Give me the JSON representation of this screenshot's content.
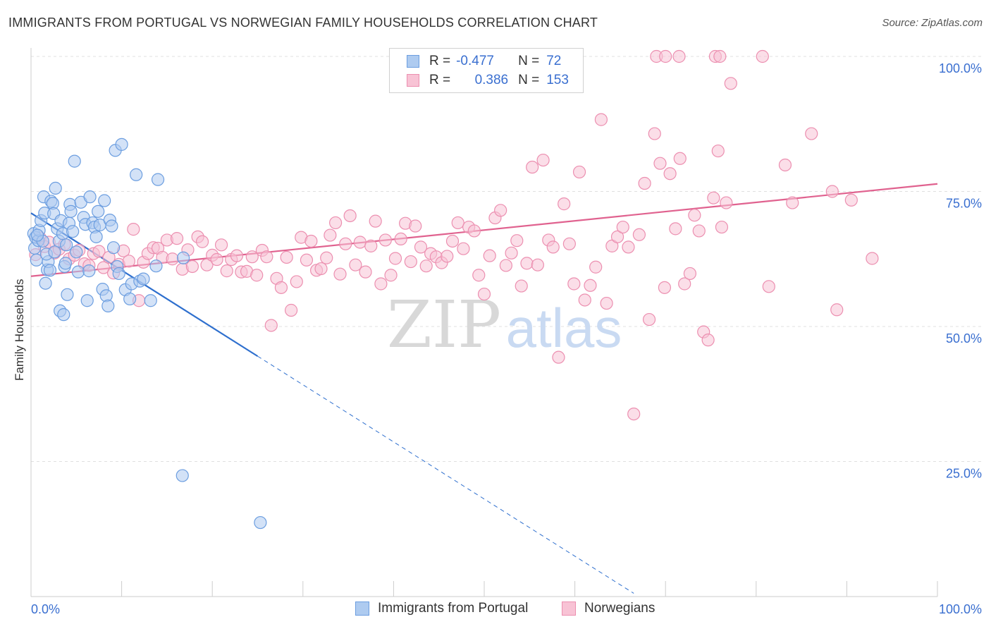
{
  "title": "IMMIGRANTS FROM PORTUGAL VS NORWEGIAN FAMILY HOUSEHOLDS CORRELATION CHART",
  "source": "Source: ZipAtlas.com",
  "watermark": {
    "zip": "ZIP",
    "atlas": "atlas"
  },
  "legend": {
    "row1": {
      "r_label": "R =",
      "r_value": "-0.477",
      "n_label": "N =",
      "n_value": "72"
    },
    "row2": {
      "r_label": "R =",
      "r_value": "0.386",
      "n_label": "N =",
      "n_value": "153"
    }
  },
  "bottom_legend": {
    "series1": "Immigrants from Portugal",
    "series2": "Norwegians"
  },
  "colors": {
    "blue_fill": "#aecbf0",
    "blue_stroke": "#6c9ee0",
    "blue_line": "#2e6fce",
    "pink_fill": "#f8c3d5",
    "pink_stroke": "#ec8fb0",
    "pink_line": "#e0628f",
    "axis_text": "#3a6fd0"
  },
  "chart_data": {
    "type": "scatter",
    "ylabel": "Family Households",
    "xlim": [
      0,
      100
    ],
    "ylim": [
      0,
      100
    ],
    "x_tick_labels": {
      "left": "0.0%",
      "right": "100.0%"
    },
    "y_tick_labels": [
      {
        "v": 100,
        "label": "100.0%"
      },
      {
        "v": 75,
        "label": "75.0%"
      },
      {
        "v": 50,
        "label": "50.0%"
      },
      {
        "v": 25,
        "label": "25.0%"
      }
    ],
    "grid": true,
    "series": [
      {
        "name": "Immigrants from Portugal",
        "r": -0.477,
        "n": 72,
        "trend": {
          "x": [
            0,
            25
          ],
          "y": [
            71,
            44.5
          ],
          "dash_to": [
            66.5,
            0.6
          ]
        },
        "points": [
          [
            0.3,
            67.2
          ],
          [
            0.4,
            64.5
          ],
          [
            0.5,
            66.5
          ],
          [
            0.6,
            62.3
          ],
          [
            0.8,
            65.9
          ],
          [
            0.9,
            67.8
          ],
          [
            1.1,
            69.6
          ],
          [
            1.3,
            65.8
          ],
          [
            1.4,
            74
          ],
          [
            1.5,
            71
          ],
          [
            1.6,
            58
          ],
          [
            1.8,
            60.5
          ],
          [
            1.9,
            62
          ],
          [
            2.1,
            60.4
          ],
          [
            2.2,
            73.2
          ],
          [
            2.4,
            72.8
          ],
          [
            2.5,
            70.9
          ],
          [
            2.7,
            75.6
          ],
          [
            2.9,
            68.1
          ],
          [
            3.1,
            65.8
          ],
          [
            3.2,
            52.9
          ],
          [
            3.3,
            69.6
          ],
          [
            3.5,
            67.2
          ],
          [
            3.6,
            52.2
          ],
          [
            3.7,
            61.1
          ],
          [
            3.9,
            65.1
          ],
          [
            4,
            55.9
          ],
          [
            4.2,
            69.1
          ],
          [
            4.3,
            72.6
          ],
          [
            4.4,
            71.3
          ],
          [
            4.6,
            67.6
          ],
          [
            4.8,
            80.6
          ],
          [
            5,
            63.8
          ],
          [
            5.2,
            60.1
          ],
          [
            5.5,
            73
          ],
          [
            5.8,
            70.2
          ],
          [
            6,
            68.9
          ],
          [
            6.2,
            54.8
          ],
          [
            6.4,
            60.3
          ],
          [
            6.5,
            74
          ],
          [
            6.8,
            69.2
          ],
          [
            7,
            68.4
          ],
          [
            7.2,
            66.6
          ],
          [
            7.4,
            71.3
          ],
          [
            7.6,
            68.8
          ],
          [
            7.9,
            56.9
          ],
          [
            8.1,
            73.3
          ],
          [
            8.3,
            55.7
          ],
          [
            8.5,
            53.8
          ],
          [
            8.7,
            69.7
          ],
          [
            8.9,
            68.6
          ],
          [
            9.1,
            64.6
          ],
          [
            9.3,
            82.6
          ],
          [
            9.5,
            61.1
          ],
          [
            9.7,
            59.8
          ],
          [
            10,
            83.7
          ],
          [
            10.4,
            56.8
          ],
          [
            10.9,
            55.1
          ],
          [
            11.1,
            57.9
          ],
          [
            11.6,
            78.1
          ],
          [
            12,
            58.4
          ],
          [
            12.4,
            58.8
          ],
          [
            13.2,
            54.8
          ],
          [
            13.8,
            61.2
          ],
          [
            14,
            77.2
          ],
          [
            16.7,
            22.4
          ],
          [
            16.8,
            62.7
          ],
          [
            25.3,
            13.7
          ],
          [
            0.7,
            66.9
          ],
          [
            1.7,
            63.4
          ],
          [
            2.6,
            63.8
          ],
          [
            3.8,
            61.7
          ]
        ]
      },
      {
        "name": "Norwegians",
        "r": 0.386,
        "n": 153,
        "trend": {
          "x": [
            0,
            100
          ],
          "y": [
            59.3,
            76.4
          ]
        },
        "points": [
          [
            0.5,
            63.3
          ],
          [
            1,
            66.4
          ],
          [
            1.5,
            64.8
          ],
          [
            2,
            65.6
          ],
          [
            2.6,
            63.6
          ],
          [
            3.1,
            64.3
          ],
          [
            3.7,
            65.2
          ],
          [
            4.2,
            62.5
          ],
          [
            4.8,
            63.2
          ],
          [
            5.3,
            64.1
          ],
          [
            5.9,
            61.6
          ],
          [
            6.4,
            61.3
          ],
          [
            6.9,
            63.5
          ],
          [
            7.5,
            63.9
          ],
          [
            8,
            60.9
          ],
          [
            8.6,
            62.8
          ],
          [
            9.1,
            59.9
          ],
          [
            9.7,
            61.5
          ],
          [
            10.2,
            64
          ],
          [
            10.8,
            62.1
          ],
          [
            11.3,
            68
          ],
          [
            11.9,
            54.8
          ],
          [
            12.4,
            61.9
          ],
          [
            12.9,
            63.5
          ],
          [
            13.5,
            64.6
          ],
          [
            14,
            64.5
          ],
          [
            14.5,
            62.8
          ],
          [
            15,
            66
          ],
          [
            15.6,
            62.5
          ],
          [
            16.1,
            66.3
          ],
          [
            16.7,
            60.6
          ],
          [
            17.3,
            64.2
          ],
          [
            17.8,
            61.1
          ],
          [
            18.4,
            66.6
          ],
          [
            18.9,
            65.7
          ],
          [
            19.4,
            61.4
          ],
          [
            20,
            63.2
          ],
          [
            20.5,
            62.4
          ],
          [
            21,
            65.1
          ],
          [
            21.6,
            60.3
          ],
          [
            22.1,
            62.4
          ],
          [
            22.7,
            63.1
          ],
          [
            23.2,
            60.1
          ],
          [
            23.8,
            60.2
          ],
          [
            24.4,
            62.9
          ],
          [
            24.9,
            59.5
          ],
          [
            25.5,
            64.1
          ],
          [
            26,
            62.9
          ],
          [
            26.5,
            50.2
          ],
          [
            27.1,
            58.9
          ],
          [
            27.6,
            57.2
          ],
          [
            28.2,
            62.8
          ],
          [
            28.7,
            53
          ],
          [
            29.3,
            58.3
          ],
          [
            29.8,
            66.5
          ],
          [
            30.4,
            62.3
          ],
          [
            30.9,
            65.8
          ],
          [
            31.5,
            60.4
          ],
          [
            32,
            60.7
          ],
          [
            32.6,
            62.7
          ],
          [
            33,
            66.9
          ],
          [
            33.6,
            69.2
          ],
          [
            34.1,
            59.7
          ],
          [
            34.7,
            65.3
          ],
          [
            35.2,
            70.5
          ],
          [
            35.8,
            61.4
          ],
          [
            36.3,
            65.6
          ],
          [
            36.9,
            60.1
          ],
          [
            37.5,
            64.9
          ],
          [
            38,
            69.5
          ],
          [
            38.6,
            57.9
          ],
          [
            39.1,
            66
          ],
          [
            39.7,
            59.5
          ],
          [
            40.2,
            62.6
          ],
          [
            40.8,
            66.2
          ],
          [
            41.3,
            69.1
          ],
          [
            41.9,
            62
          ],
          [
            42.4,
            68.6
          ],
          [
            43,
            64.7
          ],
          [
            43.6,
            61.2
          ],
          [
            44.1,
            63.5
          ],
          [
            44.7,
            62.9
          ],
          [
            45.3,
            61.8
          ],
          [
            45.9,
            63
          ],
          [
            46.5,
            65.8
          ],
          [
            47.1,
            69.2
          ],
          [
            47.7,
            64.4
          ],
          [
            48.3,
            68.4
          ],
          [
            48.9,
            67.7
          ],
          [
            49.4,
            59.5
          ],
          [
            50,
            56
          ],
          [
            50.6,
            63.1
          ],
          [
            51.2,
            70.1
          ],
          [
            51.8,
            71.5
          ],
          [
            52.4,
            61.3
          ],
          [
            53,
            63.6
          ],
          [
            53.6,
            65.9
          ],
          [
            54.1,
            57.5
          ],
          [
            54.7,
            61.7
          ],
          [
            55.3,
            79.5
          ],
          [
            55.9,
            61.4
          ],
          [
            56.5,
            80.8
          ],
          [
            57.1,
            66
          ],
          [
            57.6,
            64.7
          ],
          [
            58.2,
            44.3
          ],
          [
            58.8,
            72.7
          ],
          [
            59.4,
            65.3
          ],
          [
            59.9,
            57.9
          ],
          [
            60.5,
            78.6
          ],
          [
            61.1,
            54.9
          ],
          [
            61.7,
            57.6
          ],
          [
            62.3,
            61
          ],
          [
            62.9,
            88.3
          ],
          [
            63.5,
            54.3
          ],
          [
            64.1,
            64.9
          ],
          [
            64.7,
            66.6
          ],
          [
            65.3,
            68.4
          ],
          [
            65.9,
            64.7
          ],
          [
            66.5,
            33.8
          ],
          [
            67.1,
            67
          ],
          [
            67.7,
            76.5
          ],
          [
            68.2,
            51.3
          ],
          [
            68.8,
            85.7
          ],
          [
            69.4,
            80.2
          ],
          [
            69.9,
            57.2
          ],
          [
            70.5,
            78.3
          ],
          [
            71.1,
            68.1
          ],
          [
            71.6,
            81.1
          ],
          [
            72.1,
            57.9
          ],
          [
            72.7,
            59.8
          ],
          [
            73.2,
            70.6
          ],
          [
            73.7,
            67.7
          ],
          [
            74.2,
            49
          ],
          [
            74.7,
            47.5
          ],
          [
            75.3,
            73.8
          ],
          [
            75.8,
            82.5
          ],
          [
            76.2,
            68.4
          ],
          [
            76.7,
            72.9
          ],
          [
            77.2,
            95
          ],
          [
            81.4,
            57.4
          ],
          [
            83.2,
            79.9
          ],
          [
            84,
            72.9
          ],
          [
            86.1,
            85.7
          ],
          [
            88.4,
            75
          ],
          [
            88.9,
            53.1
          ],
          [
            90.5,
            73.4
          ],
          [
            92.8,
            62.6
          ],
          [
            69,
            100
          ],
          [
            70,
            100
          ],
          [
            71.5,
            100
          ],
          [
            75.5,
            100
          ],
          [
            76,
            100
          ],
          [
            80.7,
            100
          ]
        ]
      }
    ]
  }
}
